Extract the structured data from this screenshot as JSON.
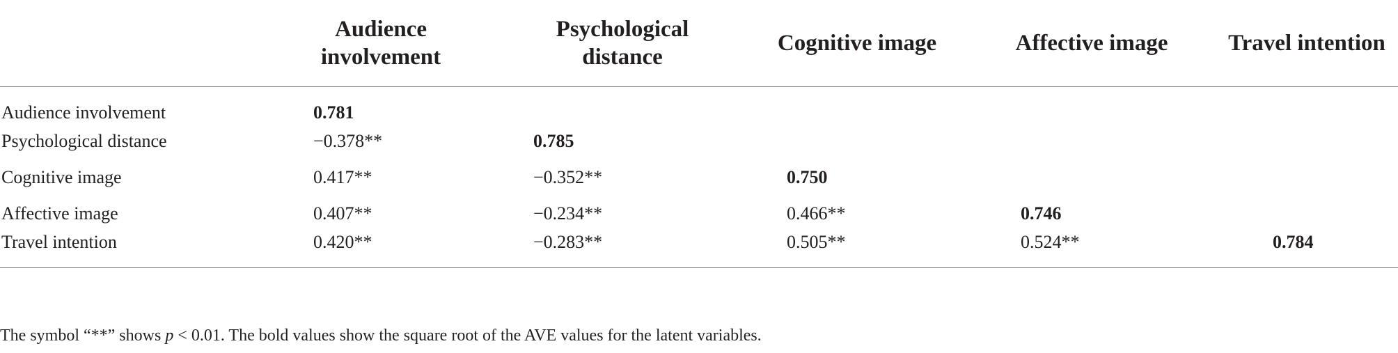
{
  "table": {
    "corner": "",
    "headers": [
      {
        "line1": "Audience",
        "line2": "involvement"
      },
      {
        "line1": "Psychological",
        "line2": "distance"
      },
      {
        "line1": "Cognitive image",
        "line2": ""
      },
      {
        "line1": "Affective image",
        "line2": ""
      },
      {
        "line1": "Travel intention",
        "line2": ""
      }
    ],
    "rows": [
      {
        "label": "Audience involvement",
        "cells": [
          "0.781",
          "",
          "",
          "",
          ""
        ]
      },
      {
        "label": "Psychological distance",
        "cells": [
          "−0.378**",
          "0.785",
          "",
          "",
          ""
        ]
      },
      {
        "label": "Cognitive image",
        "cells": [
          "0.417**",
          "−0.352**",
          "0.750",
          "",
          ""
        ]
      },
      {
        "label": "Affective image",
        "cells": [
          "0.407**",
          "−0.234**",
          "0.466**",
          "0.746",
          ""
        ]
      },
      {
        "label": "Travel intention",
        "cells": [
          "0.420**",
          "−0.283**",
          "0.505**",
          "0.524**",
          "0.784"
        ]
      }
    ]
  },
  "footnote": {
    "before": "The symbol “**” shows ",
    "italic": "p",
    "after": " < 0.01. The bold values show the square root of the AVE values for the latent variables."
  }
}
